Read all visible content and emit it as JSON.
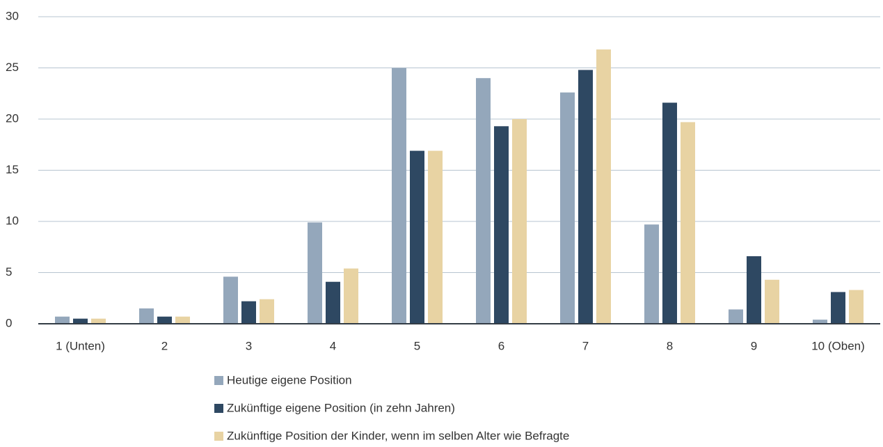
{
  "chart_data": {
    "type": "bar",
    "categories": [
      "1 (Unten)",
      "2",
      "3",
      "4",
      "5",
      "6",
      "7",
      "8",
      "9",
      "10 (Oben)"
    ],
    "series": [
      {
        "name": "Heutige eigene Position",
        "color": "#94a7bb",
        "values": [
          0.7,
          1.5,
          4.6,
          9.9,
          25.0,
          24.0,
          22.6,
          9.7,
          1.4,
          0.4
        ]
      },
      {
        "name": "Zukünftige eigene Position (in zehn Jahren)",
        "color": "#2e4862",
        "values": [
          0.5,
          0.7,
          2.2,
          4.1,
          16.9,
          19.3,
          24.8,
          21.6,
          6.6,
          3.1
        ]
      },
      {
        "name": "Zukünftige Position der Kinder, wenn im selben Alter wie Befragte",
        "color": "#e8d3a3",
        "values": [
          0.5,
          0.7,
          2.4,
          5.4,
          16.9,
          20.0,
          26.8,
          19.7,
          4.3,
          3.3
        ]
      }
    ],
    "ylim": [
      0,
      30
    ],
    "yticks": [
      0,
      5,
      10,
      15,
      20,
      25,
      30
    ],
    "grid": true
  }
}
